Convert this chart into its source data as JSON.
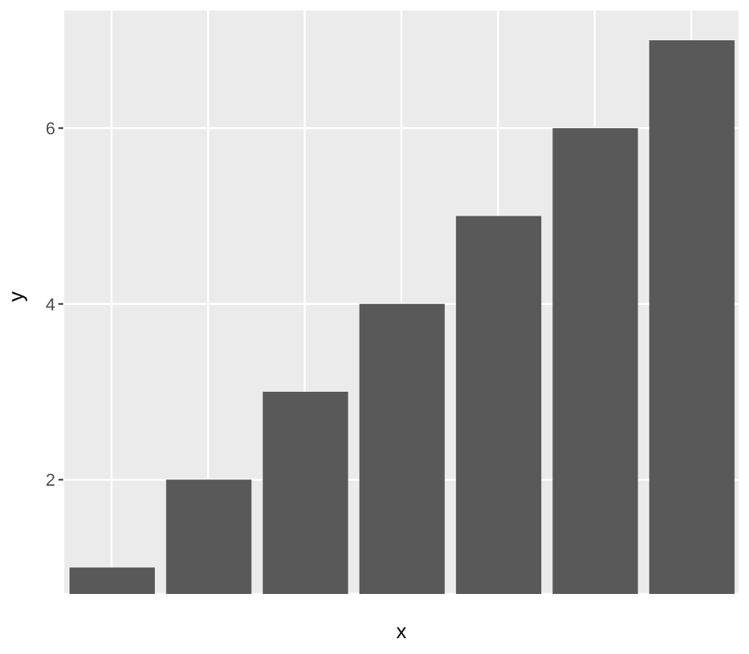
{
  "chart_data": {
    "type": "bar",
    "xlabel": "x",
    "ylabel": "y",
    "categories": [
      null,
      null,
      null,
      null,
      null,
      null,
      null
    ],
    "values": [
      1,
      2,
      3,
      4,
      5,
      6,
      7
    ],
    "color": "#595959",
    "ylim": [
      0.7,
      7.35
    ],
    "yticks": [
      2,
      4,
      6
    ],
    "grid": true
  }
}
